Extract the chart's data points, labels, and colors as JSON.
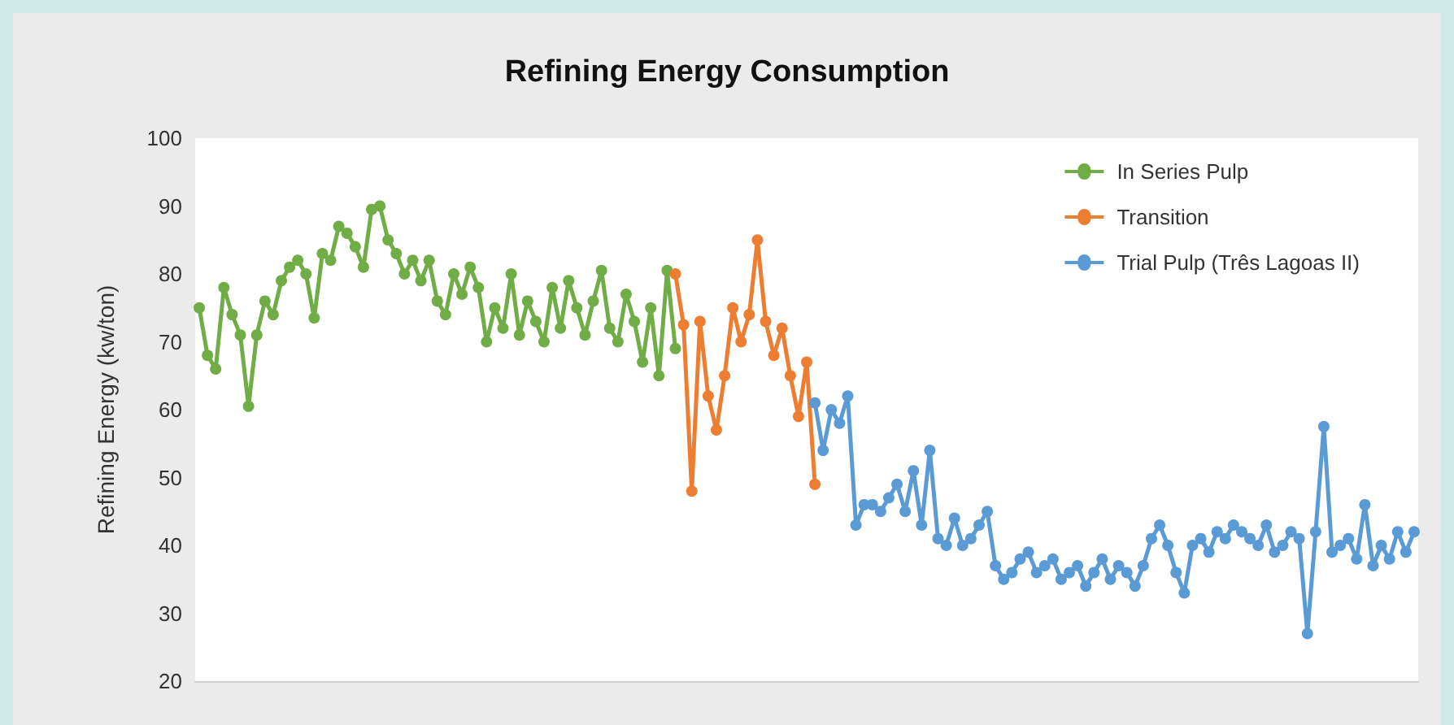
{
  "chart_data": {
    "type": "line",
    "title": "Refining Energy Consumption",
    "ylabel": "Refining Energy (kw/ton)",
    "categories": [
      null,
      null,
      null,
      null,
      null,
      null,
      null,
      null,
      null,
      null,
      null,
      null,
      null,
      null,
      null,
      null,
      null,
      null,
      null,
      null,
      null,
      null,
      null,
      null,
      null,
      null,
      null,
      null,
      null,
      null,
      null,
      null,
      null,
      null,
      null,
      null,
      null,
      null,
      null,
      null,
      null,
      null,
      null,
      null,
      null,
      null,
      null,
      null,
      null,
      null,
      null,
      null,
      null,
      null,
      null,
      null,
      null,
      null,
      null,
      null,
      null,
      null,
      null,
      null,
      null,
      null,
      null,
      null,
      null,
      null,
      null,
      null,
      null,
      null,
      null,
      null,
      null,
      null,
      null,
      null,
      null,
      null,
      null,
      null,
      null,
      null,
      null,
      null,
      null,
      null,
      null,
      null,
      null,
      null,
      null,
      null,
      null,
      null,
      null,
      null,
      null,
      null,
      null,
      null,
      null,
      null,
      null,
      null,
      null,
      null,
      null,
      null,
      null,
      null,
      null,
      null,
      null,
      null,
      null,
      null,
      null,
      null,
      null,
      null,
      null,
      null,
      null,
      null,
      null,
      null,
      null,
      null,
      null,
      null,
      null,
      null,
      null,
      null,
      null,
      null,
      null,
      null,
      null,
      null,
      null,
      null,
      null,
      null,
      null
    ],
    "series": [
      {
        "name": "In Series Pulp",
        "color": "#70ad47",
        "values": [
          75,
          68,
          66,
          78,
          74,
          71,
          60.5,
          71,
          76,
          74,
          79,
          81,
          82,
          80,
          73.5,
          83,
          82,
          87,
          86,
          84,
          81,
          89.5,
          90,
          85,
          83,
          80,
          82,
          79,
          82,
          76,
          74,
          80,
          77,
          81,
          78,
          70,
          75,
          72,
          80,
          71,
          76,
          73,
          70,
          78,
          72,
          79,
          75,
          71,
          76,
          80.5,
          72,
          70,
          77,
          73,
          67,
          75,
          65,
          80.5,
          69,
          null,
          null,
          null,
          null,
          null,
          null,
          null,
          null,
          null,
          null,
          null,
          null,
          null,
          null,
          null,
          null,
          null,
          null,
          null,
          null,
          null,
          null,
          null,
          null,
          null,
          null,
          null,
          null,
          null,
          null,
          null,
          null,
          null,
          null,
          null,
          null,
          null,
          null,
          null,
          null,
          null,
          null,
          null,
          null,
          null,
          null,
          null,
          null,
          null,
          null,
          null,
          null,
          null,
          null,
          null,
          null,
          null,
          null,
          null,
          null,
          null,
          null,
          null,
          null,
          null,
          null,
          null,
          null,
          null,
          null,
          null,
          null,
          null,
          null,
          null,
          null,
          null,
          null,
          null,
          null,
          null,
          null,
          null,
          null,
          null,
          null,
          null,
          null,
          null,
          null
        ]
      },
      {
        "name": "Transition",
        "color": "#ed7d31",
        "values": [
          null,
          null,
          null,
          null,
          null,
          null,
          null,
          null,
          null,
          null,
          null,
          null,
          null,
          null,
          null,
          null,
          null,
          null,
          null,
          null,
          null,
          null,
          null,
          null,
          null,
          null,
          null,
          null,
          null,
          null,
          null,
          null,
          null,
          null,
          null,
          null,
          null,
          null,
          null,
          null,
          null,
          null,
          null,
          null,
          null,
          null,
          null,
          null,
          null,
          null,
          null,
          null,
          null,
          null,
          null,
          null,
          null,
          null,
          80,
          72.5,
          48,
          73,
          62,
          57,
          65,
          75,
          70,
          74,
          85,
          73,
          68,
          72,
          65,
          59,
          67,
          49,
          null,
          null,
          null,
          null,
          null,
          null,
          null,
          null,
          null,
          null,
          null,
          null,
          null,
          null,
          null,
          null,
          null,
          null,
          null,
          null,
          null,
          null,
          null,
          null,
          null,
          null,
          null,
          null,
          null,
          null,
          null,
          null,
          null,
          null,
          null,
          null,
          null,
          null,
          null,
          null,
          null,
          null,
          null,
          null,
          null,
          null,
          null,
          null,
          null,
          null,
          null,
          null,
          null,
          null,
          null,
          null,
          null,
          null,
          null,
          null,
          null,
          null,
          null,
          null,
          null,
          null,
          null,
          null,
          null,
          null,
          null,
          null,
          null
        ]
      },
      {
        "name": "Trial Pulp (Três Lagoas II)",
        "color": "#5b9bd5",
        "values": [
          null,
          null,
          null,
          null,
          null,
          null,
          null,
          null,
          null,
          null,
          null,
          null,
          null,
          null,
          null,
          null,
          null,
          null,
          null,
          null,
          null,
          null,
          null,
          null,
          null,
          null,
          null,
          null,
          null,
          null,
          null,
          null,
          null,
          null,
          null,
          null,
          null,
          null,
          null,
          null,
          null,
          null,
          null,
          null,
          null,
          null,
          null,
          null,
          null,
          null,
          null,
          null,
          null,
          null,
          null,
          null,
          null,
          null,
          null,
          null,
          null,
          null,
          null,
          null,
          null,
          null,
          null,
          null,
          null,
          null,
          null,
          null,
          null,
          null,
          null,
          61,
          54,
          60,
          58,
          62,
          43,
          46,
          46,
          45,
          47,
          49,
          45,
          51,
          43,
          54,
          41,
          40,
          44,
          40,
          41,
          43,
          45,
          37,
          35,
          36,
          38,
          39,
          36,
          37,
          38,
          35,
          36,
          37,
          34,
          36,
          38,
          35,
          37,
          36,
          34,
          37,
          41,
          43,
          40,
          36,
          33,
          40,
          41,
          39,
          42,
          41,
          43,
          42,
          41,
          40,
          43,
          39,
          40,
          42,
          41,
          27,
          42,
          57.5,
          39,
          40,
          41,
          38,
          46,
          37,
          40,
          38,
          42,
          39,
          42
        ]
      }
    ],
    "ylim": [
      20,
      100
    ],
    "yticks": [
      20,
      30,
      40,
      50,
      60,
      70,
      80,
      90,
      100
    ],
    "grid": false,
    "legend": "top right",
    "tick_labels": "y",
    "marker": "circle",
    "line_style": "solid"
  }
}
